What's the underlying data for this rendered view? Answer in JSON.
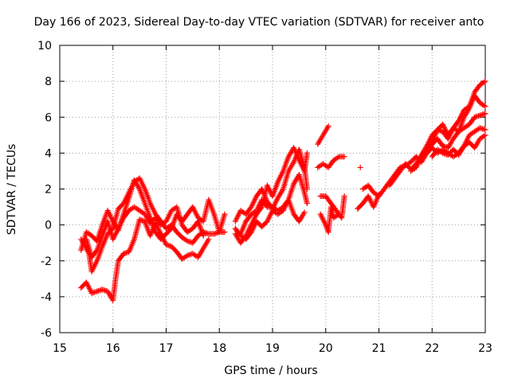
{
  "chart_data": {
    "type": "scatter",
    "title": "Day 166 of 2023, Sidereal Day-to-day VTEC variation (SDTVAR) for receiver anto",
    "xlabel": "GPS time / hours",
    "ylabel": "SDTVAR / TECUs",
    "xlim": [
      15,
      23
    ],
    "ylim": [
      -6,
      10
    ],
    "xticks": [
      "15",
      "16",
      "17",
      "18",
      "19",
      "20",
      "21",
      "22",
      "23"
    ],
    "yticks": [
      "-6",
      "-4",
      "-2",
      "0",
      "2",
      "4",
      "6",
      "8",
      "10"
    ],
    "grid": true,
    "marker": "+",
    "color": "#ff0000",
    "series": [
      {
        "name": "s1",
        "points": [
          [
            15.4,
            -3.5
          ],
          [
            15.5,
            -3.2
          ],
          [
            15.6,
            -3.8
          ],
          [
            15.7,
            -3.7
          ],
          [
            15.8,
            -3.6
          ],
          [
            15.9,
            -3.7
          ],
          [
            16.0,
            -4.2
          ],
          [
            16.05,
            -3.0
          ],
          [
            16.1,
            -2.0
          ],
          [
            16.2,
            -1.6
          ],
          [
            16.3,
            -1.5
          ],
          [
            16.4,
            -0.8
          ],
          [
            16.5,
            0.3
          ],
          [
            16.6,
            0.2
          ],
          [
            16.7,
            -0.6
          ],
          [
            16.8,
            0.1
          ],
          [
            16.9,
            -0.5
          ],
          [
            17.0,
            -1.1
          ],
          [
            17.1,
            -1.2
          ],
          [
            17.2,
            -1.5
          ],
          [
            17.3,
            -1.9
          ],
          [
            17.4,
            -1.7
          ],
          [
            17.5,
            -1.6
          ],
          [
            17.6,
            -1.8
          ],
          [
            17.7,
            -1.3
          ],
          [
            17.8,
            -0.8
          ]
        ]
      },
      {
        "name": "s2",
        "points": [
          [
            15.4,
            -0.8
          ],
          [
            15.5,
            -1.3
          ],
          [
            15.55,
            -1.6
          ],
          [
            15.6,
            -2.6
          ],
          [
            15.7,
            -2.0
          ],
          [
            15.8,
            -1.2
          ],
          [
            15.9,
            -0.5
          ],
          [
            16.0,
            -0.2
          ],
          [
            16.1,
            0.9
          ],
          [
            16.2,
            1.2
          ],
          [
            16.3,
            1.8
          ],
          [
            16.4,
            2.4
          ],
          [
            16.5,
            2.6
          ],
          [
            16.6,
            2.0
          ],
          [
            16.7,
            1.2
          ],
          [
            16.8,
            0.6
          ],
          [
            16.9,
            0.2
          ],
          [
            17.0,
            -0.2
          ],
          [
            17.1,
            0.0
          ],
          [
            17.2,
            -0.4
          ],
          [
            17.3,
            -0.7
          ],
          [
            17.4,
            -0.9
          ],
          [
            17.5,
            -1.0
          ],
          [
            17.6,
            -0.6
          ],
          [
            17.7,
            -0.4
          ],
          [
            17.8,
            -0.5
          ],
          [
            17.9,
            -0.5
          ],
          [
            18.0,
            -0.4
          ],
          [
            18.1,
            -0.4
          ]
        ]
      },
      {
        "name": "s3",
        "points": [
          [
            15.4,
            -1.4
          ],
          [
            15.5,
            -0.4
          ],
          [
            15.6,
            -0.6
          ],
          [
            15.7,
            -0.9
          ],
          [
            15.8,
            0.0
          ],
          [
            15.9,
            0.8
          ],
          [
            16.0,
            0.2
          ],
          [
            16.1,
            -0.3
          ],
          [
            16.2,
            0.6
          ],
          [
            16.3,
            1.5
          ],
          [
            16.4,
            2.5
          ],
          [
            16.5,
            2.0
          ],
          [
            16.6,
            1.2
          ],
          [
            16.7,
            0.4
          ],
          [
            16.8,
            -0.4
          ],
          [
            16.9,
            -0.8
          ],
          [
            17.0,
            -0.5
          ],
          [
            17.1,
            -0.2
          ],
          [
            17.2,
            0.6
          ],
          [
            17.3,
            0.2
          ],
          [
            17.4,
            0.6
          ],
          [
            17.5,
            1.0
          ],
          [
            17.6,
            0.4
          ],
          [
            17.7,
            0.2
          ],
          [
            17.8,
            1.4
          ],
          [
            17.9,
            0.6
          ],
          [
            18.0,
            -0.4
          ],
          [
            18.1,
            0.6
          ]
        ]
      },
      {
        "name": "s4",
        "points": [
          [
            15.5,
            -0.8
          ],
          [
            15.6,
            -1.8
          ],
          [
            15.7,
            -1.4
          ],
          [
            15.8,
            -0.6
          ],
          [
            15.9,
            0.2
          ],
          [
            16.0,
            -0.8
          ],
          [
            16.1,
            -0.2
          ],
          [
            16.2,
            0.4
          ],
          [
            16.3,
            0.8
          ],
          [
            16.4,
            1.0
          ],
          [
            16.5,
            0.8
          ],
          [
            16.6,
            0.6
          ],
          [
            16.7,
            0.1
          ],
          [
            16.8,
            0.4
          ],
          [
            16.9,
            0.0
          ],
          [
            17.0,
            0.2
          ],
          [
            17.1,
            0.8
          ],
          [
            17.2,
            1.0
          ],
          [
            17.3,
            0.0
          ],
          [
            17.4,
            -0.4
          ],
          [
            17.5,
            -0.2
          ],
          [
            17.6,
            0.2
          ],
          [
            17.7,
            -0.6
          ]
        ]
      },
      {
        "name": "s5",
        "points": [
          [
            18.3,
            0.2
          ],
          [
            18.4,
            0.8
          ],
          [
            18.5,
            0.6
          ],
          [
            18.6,
            1.0
          ],
          [
            18.7,
            1.6
          ],
          [
            18.8,
            2.0
          ],
          [
            18.9,
            1.3
          ],
          [
            19.0,
            0.9
          ],
          [
            19.1,
            1.5
          ],
          [
            19.2,
            2.0
          ],
          [
            19.3,
            3.0
          ],
          [
            19.4,
            3.5
          ],
          [
            19.5,
            4.2
          ],
          [
            19.6,
            3.2
          ],
          [
            19.65,
            2.0
          ]
        ]
      },
      {
        "name": "s6",
        "points": [
          [
            18.3,
            -0.2
          ],
          [
            18.4,
            -0.6
          ],
          [
            18.5,
            -0.8
          ],
          [
            18.6,
            -0.4
          ],
          [
            18.7,
            0.2
          ],
          [
            18.8,
            -0.1
          ],
          [
            18.9,
            0.2
          ],
          [
            19.0,
            0.8
          ],
          [
            19.1,
            0.6
          ],
          [
            19.2,
            0.8
          ],
          [
            19.3,
            1.4
          ],
          [
            19.4,
            2.3
          ],
          [
            19.5,
            2.8
          ],
          [
            19.6,
            1.8
          ],
          [
            19.65,
            1.2
          ]
        ]
      },
      {
        "name": "s7",
        "points": [
          [
            18.3,
            -0.5
          ],
          [
            18.4,
            -1.0
          ],
          [
            18.5,
            -0.6
          ],
          [
            18.6,
            0.0
          ],
          [
            18.7,
            0.6
          ],
          [
            18.8,
            1.0
          ],
          [
            18.9,
            2.2
          ],
          [
            19.0,
            1.6
          ],
          [
            19.1,
            2.4
          ],
          [
            19.2,
            3.0
          ],
          [
            19.3,
            3.8
          ],
          [
            19.4,
            4.3
          ],
          [
            19.5,
            3.6
          ],
          [
            19.6,
            3.0
          ],
          [
            19.65,
            4.0
          ]
        ]
      },
      {
        "name": "s8",
        "points": [
          [
            18.4,
            -0.5
          ],
          [
            18.5,
            0.2
          ],
          [
            18.6,
            0.6
          ],
          [
            18.7,
            0.8
          ],
          [
            18.8,
            1.4
          ],
          [
            18.9,
            1.0
          ],
          [
            19.0,
            1.0
          ],
          [
            19.1,
            0.8
          ],
          [
            19.2,
            1.0
          ],
          [
            19.3,
            1.4
          ],
          [
            19.4,
            0.6
          ],
          [
            19.5,
            0.2
          ],
          [
            19.6,
            0.7
          ]
        ]
      },
      {
        "name": "s9",
        "points": [
          [
            19.85,
            4.5
          ],
          [
            19.95,
            5.0
          ],
          [
            20.05,
            5.5
          ]
        ]
      },
      {
        "name": "s10",
        "points": [
          [
            19.85,
            3.2
          ],
          [
            19.95,
            3.4
          ],
          [
            20.05,
            3.2
          ],
          [
            20.15,
            3.6
          ],
          [
            20.25,
            3.8
          ],
          [
            20.35,
            3.8
          ]
        ]
      },
      {
        "name": "s11",
        "points": [
          [
            19.9,
            1.6
          ],
          [
            20.0,
            1.6
          ],
          [
            20.1,
            1.2
          ],
          [
            20.2,
            0.8
          ],
          [
            20.3,
            0.4
          ],
          [
            20.35,
            1.6
          ]
        ]
      },
      {
        "name": "s12",
        "points": [
          [
            19.9,
            0.6
          ],
          [
            20.0,
            0.0
          ],
          [
            20.05,
            -0.4
          ],
          [
            20.1,
            1.0
          ],
          [
            20.15,
            0.4
          ],
          [
            20.25,
            0.6
          ]
        ]
      },
      {
        "name": "s13",
        "points": [
          [
            20.65,
            3.2
          ]
        ]
      },
      {
        "name": "s14",
        "points": [
          [
            20.6,
            0.9
          ],
          [
            20.7,
            1.2
          ],
          [
            20.8,
            1.6
          ],
          [
            20.9,
            1.0
          ],
          [
            21.0,
            1.7
          ]
        ]
      },
      {
        "name": "s15",
        "points": [
          [
            20.7,
            2.0
          ],
          [
            20.8,
            2.2
          ],
          [
            20.9,
            1.8
          ],
          [
            21.0,
            1.6
          ],
          [
            21.1,
            2.0
          ],
          [
            21.2,
            2.4
          ],
          [
            21.3,
            2.8
          ],
          [
            21.4,
            3.2
          ],
          [
            21.5,
            3.3
          ],
          [
            21.6,
            3.5
          ],
          [
            21.7,
            3.8
          ],
          [
            21.8,
            3.5
          ],
          [
            21.9,
            4.0
          ],
          [
            22.0,
            4.3
          ],
          [
            22.1,
            4.0
          ],
          [
            22.2,
            4.2
          ],
          [
            22.3,
            4.0
          ],
          [
            22.4,
            3.8
          ],
          [
            22.5,
            4.0
          ],
          [
            22.6,
            4.4
          ],
          [
            22.7,
            4.6
          ],
          [
            22.8,
            4.3
          ],
          [
            22.9,
            4.8
          ],
          [
            23.0,
            5.0
          ]
        ]
      },
      {
        "name": "s16",
        "points": [
          [
            21.2,
            2.2
          ],
          [
            21.3,
            2.6
          ],
          [
            21.4,
            3.0
          ],
          [
            21.5,
            3.4
          ],
          [
            21.6,
            3.1
          ],
          [
            21.7,
            3.4
          ],
          [
            21.8,
            3.9
          ],
          [
            21.9,
            4.4
          ],
          [
            22.0,
            5.0
          ],
          [
            22.1,
            5.3
          ],
          [
            22.2,
            5.2
          ],
          [
            22.3,
            4.8
          ],
          [
            22.4,
            5.4
          ],
          [
            22.5,
            5.8
          ],
          [
            22.6,
            6.4
          ],
          [
            22.7,
            6.6
          ],
          [
            22.8,
            7.4
          ],
          [
            22.9,
            7.8
          ],
          [
            23.0,
            8.0
          ]
        ]
      },
      {
        "name": "s17",
        "points": [
          [
            21.6,
            3.0
          ],
          [
            21.7,
            3.2
          ],
          [
            21.8,
            3.8
          ],
          [
            21.9,
            4.0
          ],
          [
            22.0,
            4.5
          ],
          [
            22.1,
            4.8
          ],
          [
            22.2,
            4.4
          ],
          [
            22.3,
            4.3
          ],
          [
            22.4,
            4.8
          ],
          [
            22.5,
            5.2
          ],
          [
            22.6,
            5.4
          ],
          [
            22.7,
            5.6
          ],
          [
            22.8,
            6.0
          ],
          [
            22.9,
            6.1
          ],
          [
            23.0,
            6.2
          ]
        ]
      },
      {
        "name": "s18",
        "points": [
          [
            21.8,
            3.6
          ],
          [
            21.9,
            4.1
          ],
          [
            22.0,
            4.6
          ],
          [
            22.1,
            5.3
          ],
          [
            22.2,
            5.6
          ],
          [
            22.3,
            5.0
          ],
          [
            22.4,
            5.4
          ],
          [
            22.5,
            5.2
          ],
          [
            22.6,
            6.0
          ],
          [
            22.7,
            6.5
          ],
          [
            22.8,
            7.2
          ],
          [
            22.9,
            6.8
          ],
          [
            23.0,
            6.6
          ]
        ]
      },
      {
        "name": "s19",
        "points": [
          [
            22.0,
            3.8
          ],
          [
            22.1,
            4.2
          ],
          [
            22.2,
            4.0
          ],
          [
            22.3,
            3.9
          ],
          [
            22.4,
            4.2
          ],
          [
            22.5,
            3.9
          ],
          [
            22.6,
            4.4
          ],
          [
            22.7,
            5.0
          ],
          [
            22.8,
            5.2
          ],
          [
            22.9,
            5.4
          ],
          [
            23.0,
            5.3
          ]
        ]
      }
    ]
  }
}
